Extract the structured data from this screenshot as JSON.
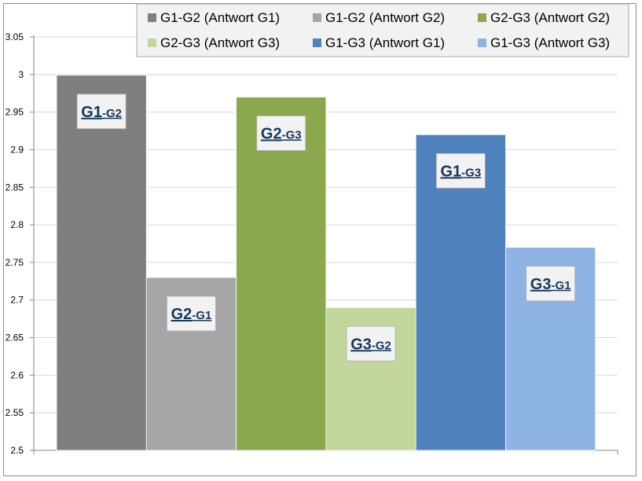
{
  "chart_data": {
    "type": "bar",
    "title": "",
    "xlabel": "",
    "ylabel": "",
    "ylim": [
      2.5,
      3.05
    ],
    "yticks": [
      "2.5",
      "2.55",
      "2.6",
      "2.65",
      "2.7",
      "2.75",
      "2.8",
      "2.85",
      "2.9",
      "2.95",
      "3",
      "3.05"
    ],
    "grid": true,
    "legend_position": "top-right",
    "series": [
      {
        "name": "G1-G2 (Antwort G1)",
        "value": 2.999,
        "color": "#7f7f7f",
        "label_main": "G1",
        "label_sub": "G2"
      },
      {
        "name": "G1-G2 (Antwort G2)",
        "value": 2.73,
        "color": "#a6a6a6",
        "label_main": "G2",
        "label_sub": "G1"
      },
      {
        "name": "G2-G3 (Antwort G2)",
        "value": 2.97,
        "color": "#8aa84e",
        "label_main": "G2",
        "label_sub": "G3"
      },
      {
        "name": "G2-G3 (Antwort G3)",
        "value": 2.69,
        "color": "#c3d69b",
        "label_main": "G3",
        "label_sub": "G2"
      },
      {
        "name": "G1-G3 (Antwort G1)",
        "value": 2.92,
        "color": "#4f81bd",
        "label_main": "G1",
        "label_sub": "G3"
      },
      {
        "name": "G1-G3 (Antwort G3)",
        "value": 2.77,
        "color": "#8db3e2",
        "label_main": "G3",
        "label_sub": "G1"
      }
    ]
  }
}
